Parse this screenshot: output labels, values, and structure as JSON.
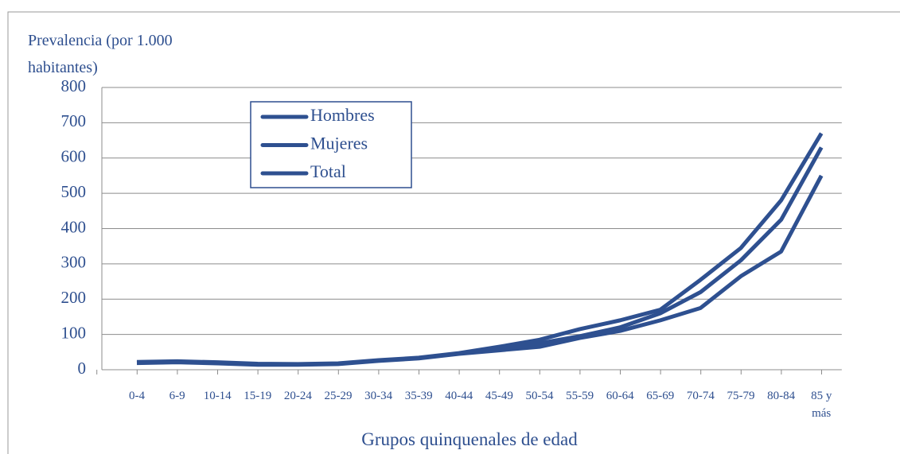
{
  "chart_data": {
    "type": "line",
    "y_label": "Prevalencia (por 1.000 habitantes)",
    "x_label": "Grupos quinquenales de edad",
    "categories": [
      "0-4",
      "6-9",
      "10-14",
      "15-19",
      "20-24",
      "25-29",
      "30-34",
      "35-39",
      "40-44",
      "45-49",
      "50-54",
      "55-59",
      "60-64",
      "65-69",
      "70-74",
      "75-79",
      "80-84",
      "85 y más"
    ],
    "series": [
      {
        "name": "Hombres",
        "color": "#2e5090",
        "values": [
          19,
          21,
          18,
          14,
          14,
          16,
          25,
          32,
          45,
          55,
          65,
          90,
          110,
          140,
          175,
          265,
          335,
          550
        ]
      },
      {
        "name": "Mujeres",
        "color": "#2e5090",
        "values": [
          22,
          24,
          21,
          17,
          16,
          18,
          27,
          34,
          47,
          65,
          85,
          115,
          140,
          170,
          255,
          345,
          480,
          670
        ]
      },
      {
        "name": "Total",
        "color": "#2e5090",
        "values": [
          20,
          22,
          19,
          15,
          15,
          17,
          26,
          33,
          46,
          60,
          75,
          95,
          120,
          160,
          220,
          310,
          425,
          630
        ]
      }
    ],
    "ylim": [
      0,
      800
    ],
    "yticks": [
      0,
      100,
      200,
      300,
      400,
      500,
      600,
      700,
      800
    ],
    "grid": true
  }
}
